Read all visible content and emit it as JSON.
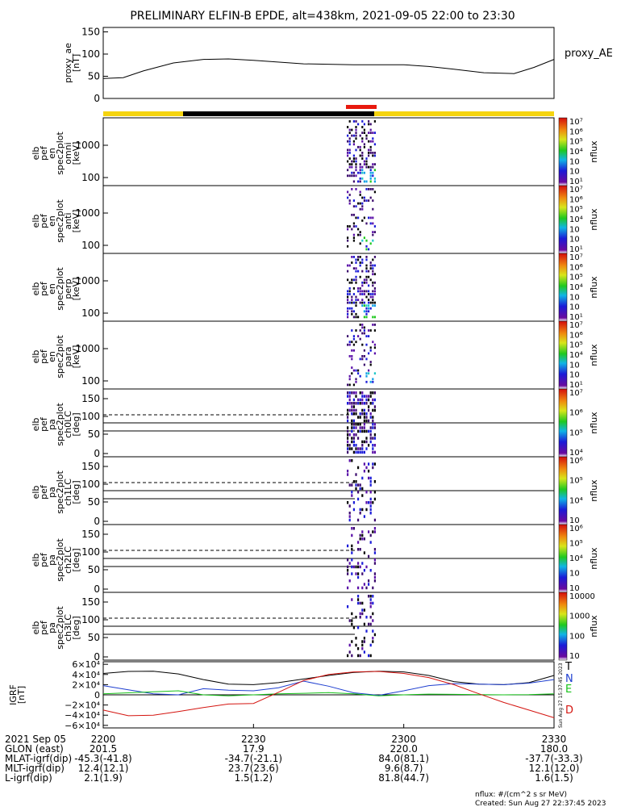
{
  "title": "PRELIMINARY ELFIN-B EPDE, alt=438km, 2021-09-05 22:00 to 23:30",
  "colors": {
    "sunlit": "#f5d40f",
    "eclipse": "#000000",
    "science_zone": "#e8190e",
    "trace_T": "#000000",
    "trace_N": "#1f3fd0",
    "trace_E": "#17c21a",
    "trace_D": "#d4140f"
  },
  "chart_data": [
    {
      "panel": "proxy_ae",
      "type": "line",
      "ylabel": [
        "proxy_ae",
        "[nT]"
      ],
      "legend": "proxy_AE",
      "ylim": [
        0,
        160
      ],
      "yticks": [
        "150",
        "100",
        "50",
        "0"
      ],
      "x_minutes": [
        0,
        4,
        8,
        14,
        20,
        25,
        30,
        40,
        50,
        60,
        65,
        70,
        76,
        82,
        86,
        90
      ],
      "values": [
        45,
        47,
        62,
        80,
        88,
        89,
        86,
        78,
        76,
        76,
        72,
        66,
        58,
        56,
        70,
        88
      ]
    },
    {
      "panel": "spec_omni",
      "type": "heatmap",
      "ylabel": [
        "elb",
        "pef",
        "en",
        "spec2plot",
        "omni",
        "[keV]"
      ],
      "yticks": [
        "1000",
        "100"
      ],
      "colorbar_label": "nflux",
      "colorbar_ticks": [
        "10⁷",
        "10⁶",
        "10⁵",
        "10⁴",
        "10⁳",
        "10⁲",
        "10¹"
      ]
    },
    {
      "panel": "spec_anti",
      "type": "heatmap",
      "ylabel": [
        "elb",
        "pef",
        "en",
        "spec2plot",
        "anti",
        "[keV]"
      ],
      "yticks": [
        "1000",
        "100"
      ],
      "colorbar_label": "nflux",
      "colorbar_ticks": [
        "10⁷",
        "10⁶",
        "10⁵",
        "10⁴",
        "10⁳",
        "10⁲",
        "10¹"
      ]
    },
    {
      "panel": "spec_perp",
      "type": "heatmap",
      "ylabel": [
        "elb",
        "pef",
        "en",
        "spec2plot",
        "perp",
        "[keV]"
      ],
      "yticks": [
        "1000",
        "100"
      ],
      "colorbar_label": "nflux",
      "colorbar_ticks": [
        "10⁷",
        "10⁶",
        "10⁵",
        "10⁴",
        "10⁳",
        "10⁲",
        "10¹"
      ]
    },
    {
      "panel": "spec_para",
      "type": "heatmap",
      "ylabel": [
        "elb",
        "pef",
        "en",
        "spec2plot",
        "para",
        "[keV]"
      ],
      "yticks": [
        "1000",
        "100"
      ],
      "colorbar_label": "nflux",
      "colorbar_ticks": [
        "10⁷",
        "10⁶",
        "10⁵",
        "10⁴",
        "10⁳",
        "10⁲",
        "10¹"
      ]
    },
    {
      "panel": "pa_ch0",
      "type": "heatmap",
      "ylabel": [
        "elb",
        "pef",
        "pa",
        "spec2plot",
        "ch0LC",
        "[deg]"
      ],
      "yticks": [
        "150",
        "100",
        "50",
        "0"
      ],
      "colorbar_label": "nflux",
      "colorbar_ticks": [
        "10⁷",
        "10⁶",
        "10⁵",
        "10⁴"
      ]
    },
    {
      "panel": "pa_ch1",
      "type": "heatmap",
      "ylabel": [
        "elb",
        "pef",
        "pa",
        "spec2plot",
        "ch1LC",
        "[deg]"
      ],
      "yticks": [
        "150",
        "100",
        "50",
        "0"
      ],
      "colorbar_label": "nflux",
      "colorbar_ticks": [
        "10⁶",
        "10⁵",
        "10⁴",
        "10⁳"
      ]
    },
    {
      "panel": "pa_ch2",
      "type": "heatmap",
      "ylabel": [
        "elb",
        "pef",
        "pa",
        "spec2plot",
        "ch2LC",
        "[deg]"
      ],
      "yticks": [
        "150",
        "100",
        "50",
        "0"
      ],
      "colorbar_label": "nflux",
      "colorbar_ticks": [
        "10⁶",
        "10⁵",
        "10⁴",
        "10⁳",
        "10⁲"
      ]
    },
    {
      "panel": "pa_ch3",
      "type": "heatmap",
      "ylabel": [
        "elb",
        "pef",
        "pa",
        "spec2plot",
        "ch3LC",
        "[deg]"
      ],
      "yticks": [
        "150",
        "100",
        "50",
        "0"
      ],
      "colorbar_label": "nflux",
      "colorbar_ticks": [
        "10000",
        "1000",
        "100",
        "10"
      ]
    },
    {
      "panel": "igrf",
      "type": "line",
      "ylabel": [
        "IGRF",
        "[nT]"
      ],
      "yticks": [
        "6×10⁴",
        "4×10⁴",
        "2×10⁴",
        "0",
        "−2×10⁴",
        "−4×10⁴",
        "−6×10⁴"
      ],
      "ylim": [
        -65000,
        65000
      ],
      "x_minutes": [
        0,
        5,
        10,
        15,
        20,
        25,
        30,
        35,
        40,
        45,
        50,
        55,
        60,
        65,
        70,
        75,
        80,
        85,
        90
      ],
      "series": [
        {
          "name": "T",
          "values": [
            42000,
            46000,
            46500,
            41000,
            30000,
            21000,
            20000,
            24000,
            31000,
            38000,
            44000,
            46500,
            45000,
            38000,
            26000,
            21000,
            20000,
            24000,
            38000
          ]
        },
        {
          "name": "N",
          "values": [
            18000,
            10000,
            2000,
            0,
            12000,
            9000,
            8000,
            14000,
            27000,
            17000,
            4000,
            -1000,
            8000,
            18000,
            22000,
            21000,
            20000,
            23000,
            30000
          ]
        },
        {
          "name": "E",
          "values": [
            2000,
            4000,
            6000,
            8000,
            0,
            -2000,
            0,
            2000,
            3000,
            4500,
            2000,
            -2000,
            0,
            1500,
            1000,
            500,
            0,
            500,
            2000
          ]
        },
        {
          "name": "D",
          "values": [
            -30000,
            -41000,
            -40000,
            -33000,
            -25000,
            -18000,
            -17000,
            5000,
            28000,
            40000,
            45000,
            46000,
            42000,
            34000,
            20000,
            2000,
            -15000,
            -30000,
            -45000
          ]
        }
      ]
    }
  ],
  "time_axis": {
    "row_labels": [
      "2021 Sep 05",
      "GLON (east)",
      "MLAT-igrf(dip)",
      "MLT-igrf(dip)",
      "L-igrf(dip)"
    ],
    "columns": [
      {
        "minute": 0,
        "values": [
          "2200",
          "201.5",
          "-45.3(-41.8)",
          "12.4(12.1)",
          "2.1(1.9)"
        ]
      },
      {
        "minute": 30,
        "values": [
          "2230",
          "17.9",
          "-34.7(-21.1)",
          "23.7(23.6)",
          "1.5(1.2)"
        ]
      },
      {
        "minute": 60,
        "values": [
          "2300",
          "220.0",
          "84.0(81.1)",
          "9.6(8.7)",
          "81.8(44.7)"
        ]
      },
      {
        "minute": 90,
        "values": [
          "2330",
          "180.0",
          "-37.7(-33.3)",
          "12.1(12.0)",
          "1.6(1.5)"
        ]
      }
    ]
  },
  "footer": {
    "units": "nflux: #/(cm^2 s sr MeV)",
    "created": "Created: Sun Aug 27 22:37:45 2023",
    "side_stamp": "Sun Aug 27 15:37:45 2023"
  }
}
